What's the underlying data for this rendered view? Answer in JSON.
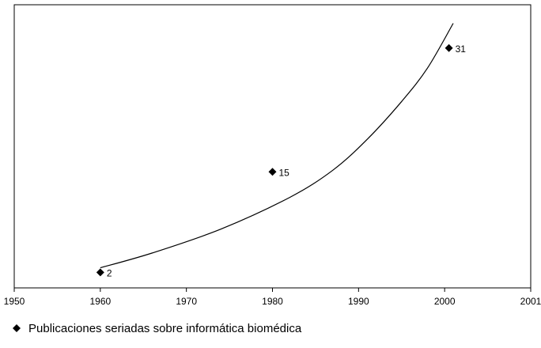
{
  "chart_data": {
    "type": "scatter",
    "x_ticks": [
      "1950",
      "1960",
      "1970",
      "1980",
      "1990",
      "2000",
      "2001"
    ],
    "series": [
      {
        "name": "Publicaciones seriadas sobre informática biomédica",
        "marker": "diamond",
        "color": "#000000",
        "points": [
          {
            "x": 1960,
            "y": 2,
            "label": "2"
          },
          {
            "x": 1980,
            "y": 15,
            "label": "15"
          },
          {
            "x": 2000.5,
            "y": 31,
            "label": "31"
          }
        ]
      }
    ],
    "trend_line": {
      "color": "#000000",
      "points": [
        {
          "x": 1960,
          "y": 2.6
        },
        {
          "x": 1966,
          "y": 4.5
        },
        {
          "x": 1974,
          "y": 7.6
        },
        {
          "x": 1982,
          "y": 11.7
        },
        {
          "x": 1987,
          "y": 15.2
        },
        {
          "x": 1991,
          "y": 19.2
        },
        {
          "x": 1995,
          "y": 24.1
        },
        {
          "x": 1998,
          "y": 28.4
        },
        {
          "x": 2001,
          "y": 34.2
        }
      ]
    },
    "xlim": [
      1950,
      2010
    ],
    "ylim": [
      0,
      36.6
    ],
    "grid": false,
    "legend_position": "bottom-left"
  }
}
